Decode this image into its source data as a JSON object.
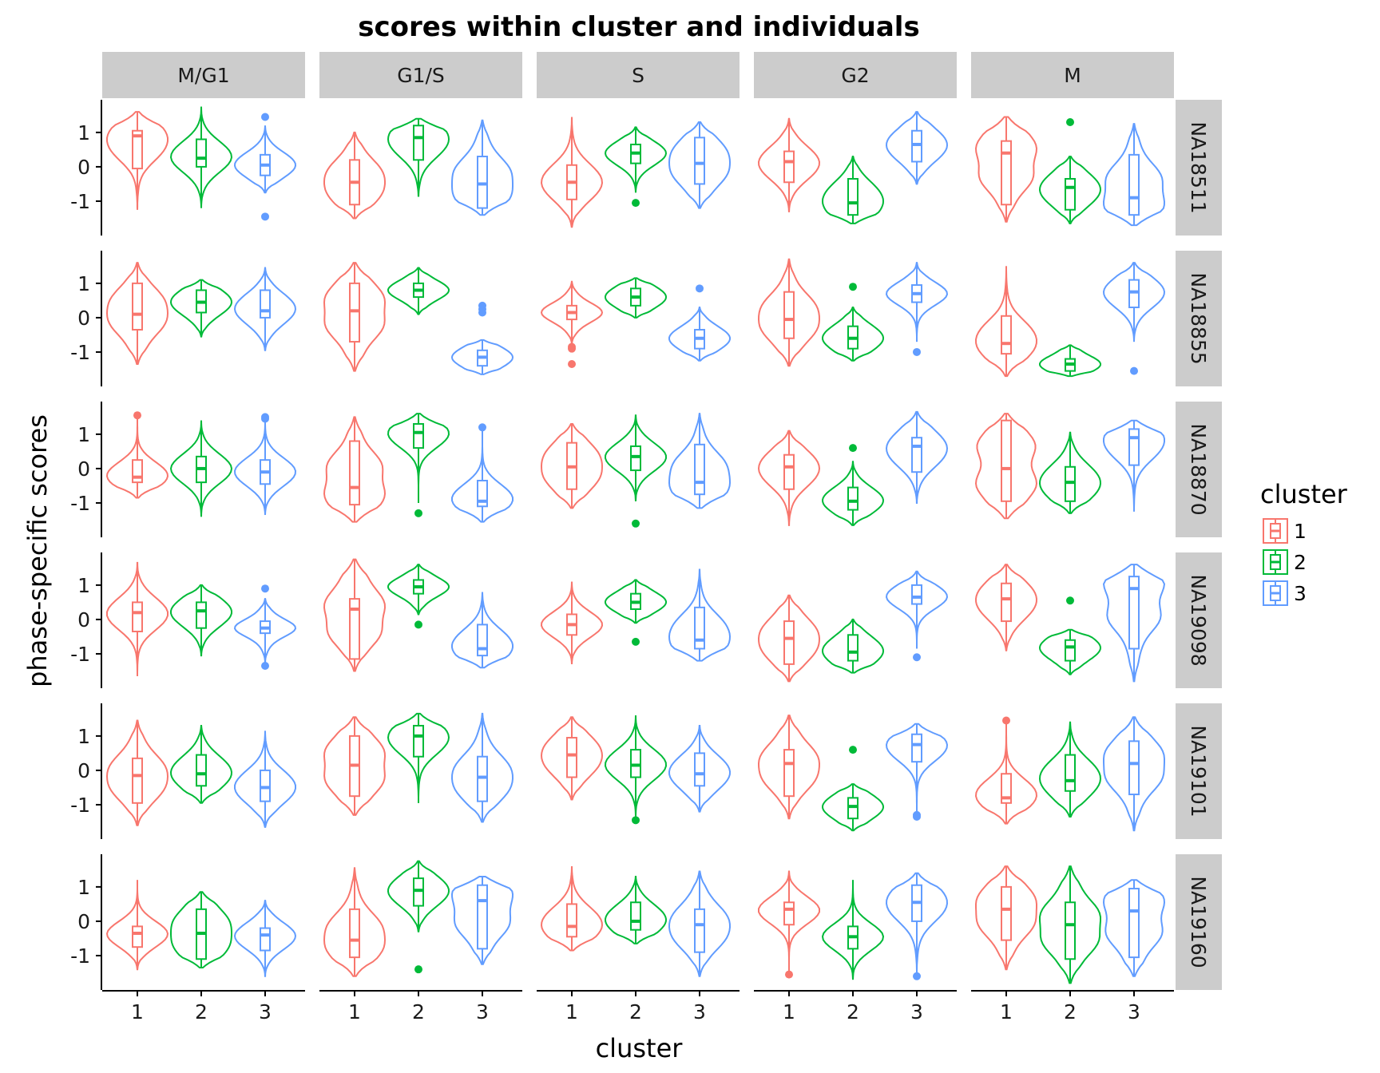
{
  "chart_data": {
    "type": "violin",
    "title": "scores within cluster and individuals",
    "xlabel": "cluster",
    "ylabel": "phase-specific scores",
    "ylim": [
      -2.0,
      1.95
    ],
    "y_ticks": [
      1,
      0,
      -1
    ],
    "y_tick_labels": [
      "1",
      "0",
      "-1"
    ],
    "x_categories": [
      "1",
      "2",
      "3"
    ],
    "grid": false,
    "legend": {
      "title": "cluster",
      "position": "right",
      "items": [
        {
          "label": "1",
          "color": "#F8766D"
        },
        {
          "label": "2",
          "color": "#00BA38"
        },
        {
          "label": "3",
          "color": "#619CFF"
        }
      ]
    },
    "phases": [
      "M/G1",
      "G1/S",
      "S",
      "G2",
      "M"
    ],
    "individuals": [
      "NA18511",
      "NA18855",
      "NA18870",
      "NA19098",
      "NA19101",
      "NA19160"
    ],
    "panels": [
      {
        "individual": "NA18511",
        "phases": [
          [
            {
              "min": -1.25,
              "q1": -0.05,
              "median": 0.9,
              "q3": 1.05,
              "max": 1.6
            },
            {
              "min": -1.2,
              "q1": 0.0,
              "median": 0.25,
              "q3": 0.8,
              "max": 1.75,
              "outliers": []
            },
            {
              "min": -0.75,
              "q1": -0.25,
              "median": 0.05,
              "q3": 0.35,
              "max": 1.2,
              "outliers": [
                1.45,
                -1.45
              ]
            }
          ],
          [
            {
              "min": -1.5,
              "q1": -1.1,
              "median": -0.45,
              "q3": 0.2,
              "max": 1.0
            },
            {
              "min": -0.85,
              "q1": 0.2,
              "median": 0.85,
              "q3": 1.2,
              "max": 1.4
            },
            {
              "min": -1.4,
              "q1": -1.2,
              "median": -0.5,
              "q3": 0.3,
              "max": 1.35
            }
          ],
          [
            {
              "min": -1.75,
              "q1": -0.95,
              "median": -0.45,
              "q3": 0.05,
              "max": 1.45
            },
            {
              "min": -0.75,
              "q1": 0.1,
              "median": 0.4,
              "q3": 0.65,
              "max": 1.15,
              "outliers": [
                -1.05
              ]
            },
            {
              "min": -1.2,
              "q1": -0.5,
              "median": 0.1,
              "q3": 0.85,
              "max": 1.3
            }
          ],
          [
            {
              "min": -1.3,
              "q1": -0.45,
              "median": 0.15,
              "q3": 0.45,
              "max": 1.4
            },
            {
              "min": -1.65,
              "q1": -1.4,
              "median": -1.05,
              "q3": -0.35,
              "max": 0.3
            },
            {
              "min": -0.5,
              "q1": 0.15,
              "median": 0.65,
              "q3": 1.05,
              "max": 1.6
            }
          ],
          [
            {
              "min": -1.6,
              "q1": -1.1,
              "median": 0.4,
              "q3": 0.75,
              "max": 1.45
            },
            {
              "min": -1.65,
              "q1": -1.25,
              "median": -0.6,
              "q3": -0.35,
              "max": 0.3,
              "outliers": [
                1.3
              ]
            },
            {
              "min": -1.7,
              "q1": -1.4,
              "median": -0.9,
              "q3": 0.35,
              "max": 1.25
            }
          ]
        ]
      },
      {
        "individual": "NA18855",
        "phases": [
          [
            {
              "min": -1.35,
              "q1": -0.35,
              "median": 0.1,
              "q3": 1.0,
              "max": 1.6
            },
            {
              "min": -0.55,
              "q1": 0.15,
              "median": 0.45,
              "q3": 0.8,
              "max": 1.1
            },
            {
              "min": -0.95,
              "q1": 0.0,
              "median": 0.2,
              "q3": 0.8,
              "max": 1.45
            }
          ],
          [
            {
              "min": -1.55,
              "q1": -0.7,
              "median": 0.2,
              "q3": 1.0,
              "max": 1.6
            },
            {
              "min": 0.1,
              "q1": 0.6,
              "median": 0.8,
              "q3": 1.0,
              "max": 1.45
            },
            {
              "min": -1.65,
              "q1": -1.4,
              "median": -1.15,
              "q3": -0.95,
              "max": -0.65,
              "outliers": [
                0.35,
                0.25,
                0.15
              ]
            }
          ],
          [
            {
              "min": -0.75,
              "q1": -0.05,
              "median": 0.15,
              "q3": 0.35,
              "max": 1.05,
              "outliers": [
                -0.85,
                -0.9,
                -1.35
              ]
            },
            {
              "min": 0.0,
              "q1": 0.35,
              "median": 0.6,
              "q3": 0.85,
              "max": 1.15
            },
            {
              "min": -1.25,
              "q1": -0.9,
              "median": -0.6,
              "q3": -0.35,
              "max": 0.3,
              "outliers": [
                0.85
              ]
            }
          ],
          [
            {
              "min": -1.4,
              "q1": -0.6,
              "median": -0.05,
              "q3": 0.75,
              "max": 1.7
            },
            {
              "min": -1.25,
              "q1": -0.9,
              "median": -0.6,
              "q3": -0.25,
              "max": 0.3,
              "outliers": [
                0.9
              ]
            },
            {
              "min": -0.7,
              "q1": 0.45,
              "median": 0.7,
              "q3": 0.95,
              "max": 1.6,
              "outliers": [
                -1.0
              ]
            }
          ],
          [
            {
              "min": -1.7,
              "q1": -1.05,
              "median": -0.75,
              "q3": 0.05,
              "max": 1.5
            },
            {
              "min": -1.7,
              "q1": -1.55,
              "median": -1.35,
              "q3": -1.2,
              "max": -0.8
            },
            {
              "min": -0.7,
              "q1": 0.3,
              "median": 0.75,
              "q3": 1.1,
              "max": 1.6,
              "outliers": [
                -1.55
              ]
            }
          ]
        ]
      },
      {
        "individual": "NA18870",
        "phases": [
          [
            {
              "min": -0.85,
              "q1": -0.4,
              "median": -0.25,
              "q3": 0.25,
              "max": 1.5,
              "outliers": [
                1.55
              ]
            },
            {
              "min": -1.4,
              "q1": -0.4,
              "median": 0.0,
              "q3": 0.35,
              "max": 1.4
            },
            {
              "min": -1.35,
              "q1": -0.45,
              "median": -0.1,
              "q3": 0.25,
              "max": 1.4,
              "outliers": [
                1.5,
                1.45
              ]
            }
          ],
          [
            {
              "min": -1.55,
              "q1": -1.05,
              "median": -0.55,
              "q3": 0.8,
              "max": 1.5
            },
            {
              "min": -1.0,
              "q1": 0.6,
              "median": 1.05,
              "q3": 1.3,
              "max": 1.6,
              "outliers": [
                -1.3
              ]
            },
            {
              "min": -1.55,
              "q1": -1.1,
              "median": -0.95,
              "q3": -0.35,
              "max": 1.1,
              "outliers": [
                1.2
              ]
            }
          ],
          [
            {
              "min": -1.15,
              "q1": -0.6,
              "median": 0.05,
              "q3": 0.75,
              "max": 1.3
            },
            {
              "min": -0.95,
              "q1": -0.05,
              "median": 0.35,
              "q3": 0.65,
              "max": 1.55,
              "outliers": [
                -1.6
              ]
            },
            {
              "min": -1.15,
              "q1": -0.75,
              "median": -0.4,
              "q3": 0.7,
              "max": 1.6
            }
          ],
          [
            {
              "min": -1.65,
              "q1": -0.6,
              "median": 0.05,
              "q3": 0.4,
              "max": 1.1
            },
            {
              "min": -1.65,
              "q1": -1.2,
              "median": -0.95,
              "q3": -0.55,
              "max": 0.2,
              "outliers": [
                0.6
              ]
            },
            {
              "min": -1.0,
              "q1": -0.1,
              "median": 0.65,
              "q3": 0.9,
              "max": 1.65
            }
          ],
          [
            {
              "min": -1.45,
              "q1": -0.95,
              "median": 0.0,
              "q3": 1.4,
              "max": 1.6
            },
            {
              "min": -1.3,
              "q1": -0.95,
              "median": -0.4,
              "q3": 0.05,
              "max": 1.05
            },
            {
              "min": -1.25,
              "q1": 0.1,
              "median": 0.9,
              "q3": 1.15,
              "max": 1.4
            }
          ]
        ]
      },
      {
        "individual": "NA19098",
        "phases": [
          [
            {
              "min": -1.65,
              "q1": -0.35,
              "median": 0.2,
              "q3": 0.5,
              "max": 1.65
            },
            {
              "min": -1.05,
              "q1": -0.25,
              "median": 0.25,
              "q3": 0.5,
              "max": 1.0
            },
            {
              "min": -1.25,
              "q1": -0.4,
              "median": -0.25,
              "q3": -0.05,
              "max": 0.6,
              "outliers": [
                0.9,
                -1.35
              ]
            }
          ],
          [
            {
              "min": -1.5,
              "q1": -1.15,
              "median": 0.3,
              "q3": 0.6,
              "max": 1.75
            },
            {
              "min": 0.15,
              "q1": 0.75,
              "median": 0.95,
              "q3": 1.15,
              "max": 1.6,
              "outliers": [
                -0.15
              ]
            },
            {
              "min": -1.4,
              "q1": -1.05,
              "median": -0.85,
              "q3": -0.15,
              "max": 0.8
            }
          ],
          [
            {
              "min": -1.3,
              "q1": -0.45,
              "median": -0.15,
              "q3": 0.15,
              "max": 1.1
            },
            {
              "min": -0.1,
              "q1": 0.3,
              "median": 0.5,
              "q3": 0.75,
              "max": 1.15,
              "outliers": [
                -0.65
              ]
            },
            {
              "min": -1.2,
              "q1": -0.85,
              "median": -0.6,
              "q3": 0.35,
              "max": 1.45
            }
          ],
          [
            {
              "min": -1.8,
              "q1": -1.3,
              "median": -0.55,
              "q3": -0.05,
              "max": 0.7
            },
            {
              "min": -1.55,
              "q1": -1.2,
              "median": -0.95,
              "q3": -0.45,
              "max": 0.0
            },
            {
              "min": -0.85,
              "q1": 0.45,
              "median": 0.65,
              "q3": 1.0,
              "max": 1.4,
              "outliers": [
                -1.1
              ]
            }
          ],
          [
            {
              "min": -0.9,
              "q1": -0.05,
              "median": 0.6,
              "q3": 1.05,
              "max": 1.6
            },
            {
              "min": -1.6,
              "q1": -1.2,
              "median": -0.8,
              "q3": -0.6,
              "max": -0.3,
              "outliers": [
                0.55
              ]
            },
            {
              "min": -1.8,
              "q1": -0.85,
              "median": 0.9,
              "q3": 1.25,
              "max": 1.6
            }
          ]
        ]
      },
      {
        "individual": "NA19101",
        "phases": [
          [
            {
              "min": -1.6,
              "q1": -0.95,
              "median": -0.15,
              "q3": 0.35,
              "max": 1.45
            },
            {
              "min": -0.95,
              "q1": -0.45,
              "median": -0.1,
              "q3": 0.45,
              "max": 1.3
            },
            {
              "min": -1.65,
              "q1": -0.9,
              "median": -0.5,
              "q3": 0.0,
              "max": 1.15
            }
          ],
          [
            {
              "min": -1.3,
              "q1": -0.75,
              "median": 0.15,
              "q3": 1.0,
              "max": 1.55
            },
            {
              "min": -0.95,
              "q1": 0.4,
              "median": 1.0,
              "q3": 1.3,
              "max": 1.65
            },
            {
              "min": -1.5,
              "q1": -0.9,
              "median": -0.2,
              "q3": 0.4,
              "max": 1.65
            }
          ],
          [
            {
              "min": -0.85,
              "q1": -0.2,
              "median": 0.45,
              "q3": 0.95,
              "max": 1.55
            },
            {
              "min": -1.35,
              "q1": -0.2,
              "median": 0.15,
              "q3": 0.6,
              "max": 1.6,
              "outliers": [
                -1.45
              ]
            },
            {
              "min": -1.2,
              "q1": -0.45,
              "median": -0.1,
              "q3": 0.5,
              "max": 1.3
            }
          ],
          [
            {
              "min": -1.4,
              "q1": -0.75,
              "median": 0.2,
              "q3": 0.6,
              "max": 1.6
            },
            {
              "min": -1.75,
              "q1": -1.4,
              "median": -1.05,
              "q3": -0.8,
              "max": -0.4,
              "outliers": [
                0.6
              ]
            },
            {
              "min": -1.25,
              "q1": 0.25,
              "median": 0.75,
              "q3": 1.05,
              "max": 1.35,
              "outliers": [
                -1.3,
                -1.35
              ]
            }
          ],
          [
            {
              "min": -1.55,
              "q1": -0.95,
              "median": -0.8,
              "q3": -0.1,
              "max": 1.45,
              "outliers": [
                1.45
              ]
            },
            {
              "min": -1.35,
              "q1": -0.6,
              "median": -0.3,
              "q3": 0.45,
              "max": 1.4
            },
            {
              "min": -1.75,
              "q1": -0.7,
              "median": 0.2,
              "q3": 0.85,
              "max": 1.55
            }
          ]
        ]
      },
      {
        "individual": "NA19160",
        "phases": [
          [
            {
              "min": -1.4,
              "q1": -0.75,
              "median": -0.35,
              "q3": -0.15,
              "max": 1.2
            },
            {
              "min": -1.35,
              "q1": -1.1,
              "median": -0.35,
              "q3": 0.35,
              "max": 0.85
            },
            {
              "min": -1.6,
              "q1": -0.85,
              "median": -0.4,
              "q3": -0.2,
              "max": 0.6
            }
          ],
          [
            {
              "min": -1.6,
              "q1": -1.05,
              "median": -0.55,
              "q3": 0.35,
              "max": 1.55
            },
            {
              "min": -0.3,
              "q1": 0.45,
              "median": 0.9,
              "q3": 1.25,
              "max": 1.75,
              "outliers": [
                -1.4
              ]
            },
            {
              "min": -1.25,
              "q1": -0.8,
              "median": 0.6,
              "q3": 1.05,
              "max": 1.3
            }
          ],
          [
            {
              "min": -0.85,
              "q1": -0.45,
              "median": -0.15,
              "q3": 0.5,
              "max": 1.6
            },
            {
              "min": -0.65,
              "q1": -0.25,
              "median": 0.0,
              "q3": 0.55,
              "max": 1.3
            },
            {
              "min": -1.6,
              "q1": -0.9,
              "median": -0.1,
              "q3": 0.35,
              "max": 1.45
            }
          ],
          [
            {
              "min": -1.5,
              "q1": -0.1,
              "median": 0.35,
              "q3": 0.55,
              "max": 1.45,
              "outliers": [
                -1.55
              ]
            },
            {
              "min": -1.7,
              "q1": -0.8,
              "median": -0.45,
              "q3": -0.15,
              "max": 1.2
            },
            {
              "min": -1.55,
              "q1": 0.0,
              "median": 0.55,
              "q3": 1.05,
              "max": 1.4,
              "outliers": [
                -1.6
              ]
            }
          ],
          [
            {
              "min": -1.4,
              "q1": -0.55,
              "median": 0.35,
              "q3": 1.0,
              "max": 1.6
            },
            {
              "min": -1.8,
              "q1": -1.1,
              "median": -0.1,
              "q3": 0.55,
              "max": 1.6
            },
            {
              "min": -1.6,
              "q1": -1.05,
              "median": 0.3,
              "q3": 0.95,
              "max": 1.2
            }
          ]
        ]
      }
    ]
  }
}
